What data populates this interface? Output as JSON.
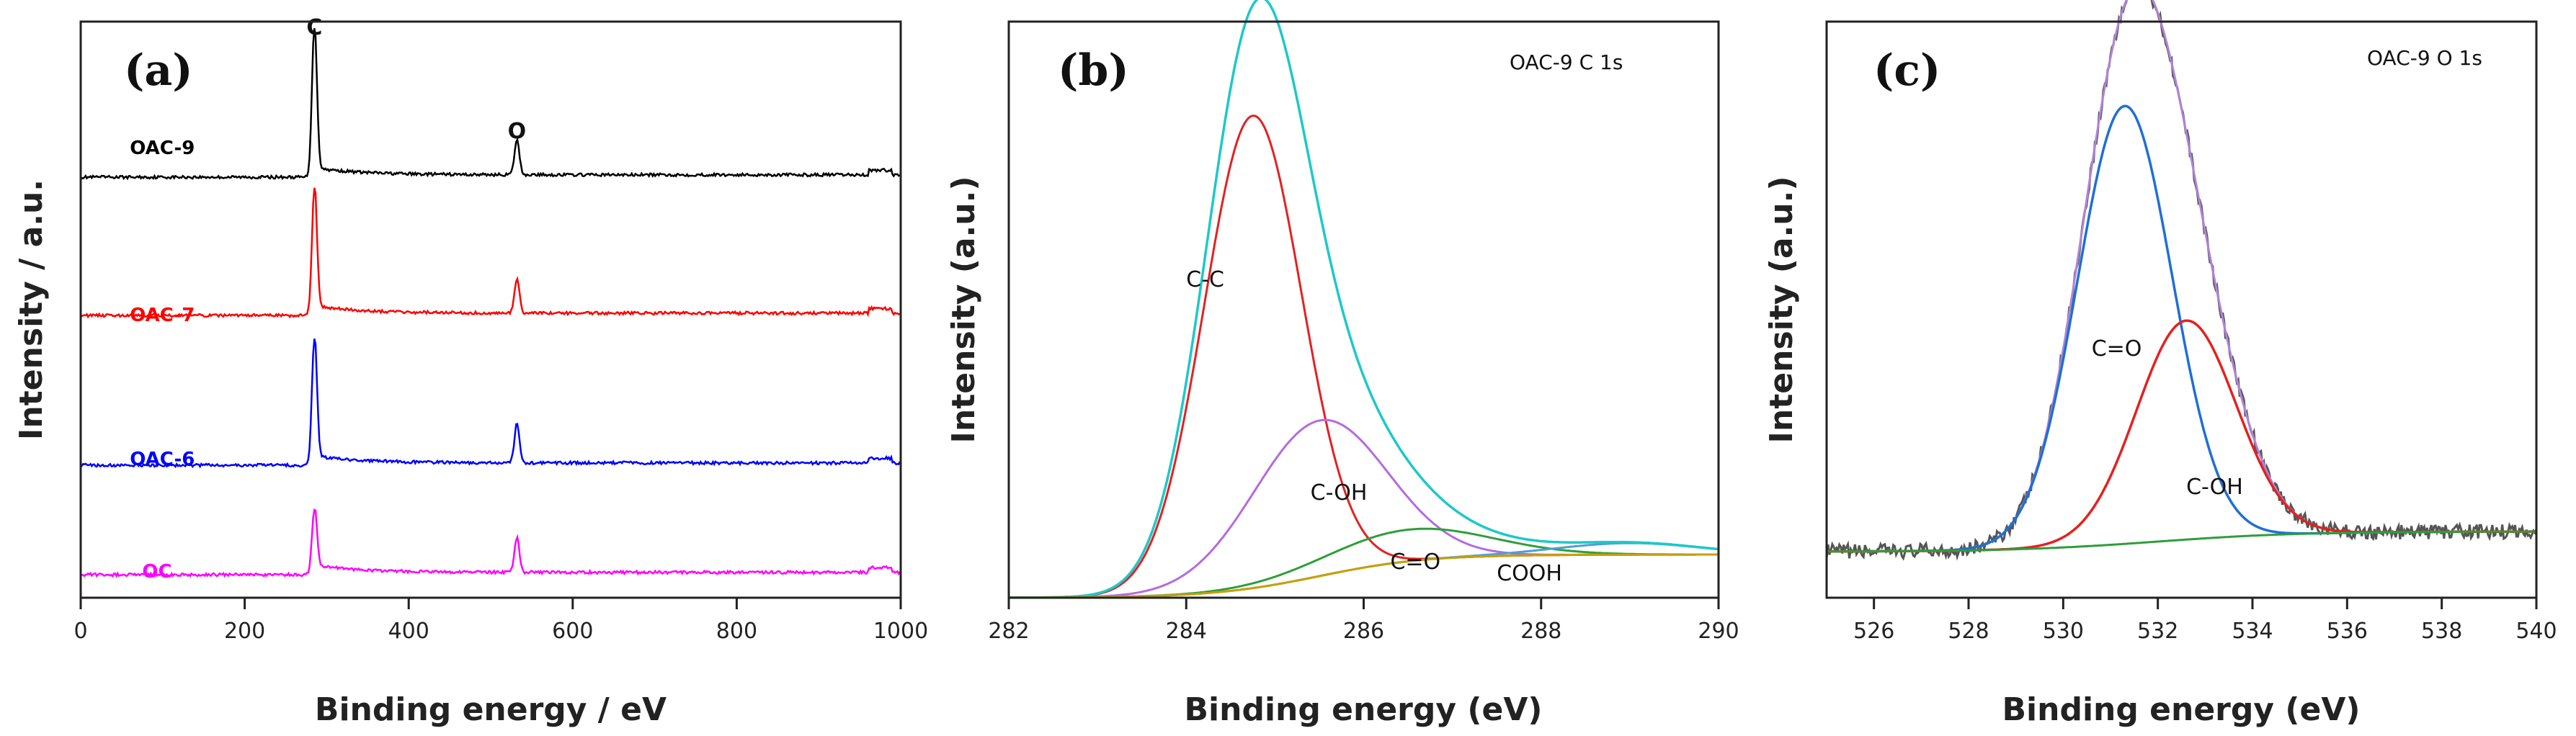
{
  "chart_data": [
    {
      "type": "line",
      "panel_label": "(a)",
      "title": "",
      "xlabel": "Binding energy / eV",
      "ylabel": "Intensity / a.u.",
      "xlim": [
        0,
        1000
      ],
      "ylim": [
        0,
        10
      ],
      "xticks": [
        "0",
        "200",
        "400",
        "600",
        "800",
        "1000"
      ],
      "yticks": [],
      "peak_labels": [
        {
          "text": "C",
          "x": 285,
          "y": 10.0
        },
        {
          "text": "O",
          "x": 532,
          "y": 8.2
        }
      ],
      "series": [
        {
          "name": "OAC-9",
          "color": "#000000",
          "baseline": 7.3,
          "peaks": [
            [
              285,
              2.6,
              3
            ],
            [
              532,
              0.6,
              3
            ]
          ],
          "label_x": 60,
          "label_y": 7.7
        },
        {
          "name": "OAC-7",
          "color": "#ff0000",
          "baseline": 4.9,
          "peaks": [
            [
              285,
              2.2,
              3
            ],
            [
              532,
              0.6,
              3
            ]
          ],
          "label_x": 60,
          "label_y": 4.8
        },
        {
          "name": "OAC-6",
          "color": "#0000ff",
          "baseline": 2.3,
          "peaks": [
            [
              285,
              2.2,
              3
            ],
            [
              532,
              0.7,
              3
            ]
          ],
          "label_x": 60,
          "label_y": 2.3
        },
        {
          "name": "OC",
          "color": "#ff00ff",
          "baseline": 0.4,
          "peaks": [
            [
              285,
              1.1,
              3
            ],
            [
              532,
              0.6,
              3
            ]
          ],
          "label_x": 75,
          "label_y": 0.35
        }
      ]
    },
    {
      "type": "line",
      "panel_label": "(b)",
      "title": "OAC-9 C 1s",
      "xlabel": "Binding energy (eV)",
      "ylabel": "Intensity (a.u.)",
      "xlim": [
        282,
        290
      ],
      "ylim": [
        0,
        1.0
      ],
      "xticks": [
        "282",
        "284",
        "286",
        "288",
        "290"
      ],
      "yticks": [],
      "background": {
        "start": 0.0,
        "end": 0.075,
        "center": 285.5,
        "width": 0.6
      },
      "series": [
        {
          "name": "C-C",
          "color": "#e52020",
          "center": 284.75,
          "height": 0.82,
          "sigma": 0.55,
          "label_x": 284.0,
          "label_y": 0.54
        },
        {
          "name": "C-OH",
          "color": "#b36be0",
          "center": 285.5,
          "height": 0.27,
          "sigma": 0.75,
          "label_x": 285.4,
          "label_y": 0.17
        },
        {
          "name": "C=O",
          "color": "#2e9e3a",
          "center": 286.5,
          "height": 0.055,
          "sigma": 0.9,
          "label_x": 286.3,
          "label_y": 0.05
        },
        {
          "name": "COOH",
          "color": "#ffffff",
          "center": 289.0,
          "height": 0.02,
          "sigma": 0.8,
          "label_x": 287.5,
          "label_y": 0.03
        },
        {
          "name": "Envelope",
          "color": "#1ec8c8"
        },
        {
          "name": "Background",
          "color": "#c8a000"
        }
      ]
    },
    {
      "type": "line",
      "panel_label": "(c)",
      "title": "OAC-9 O 1s",
      "xlabel": "Binding energy (eV)",
      "ylabel": "Intensity (a.u.)",
      "xlim": [
        525,
        540
      ],
      "ylim": [
        0,
        1.0
      ],
      "xticks": [
        "526",
        "528",
        "530",
        "532",
        "534",
        "536",
        "538",
        "540"
      ],
      "yticks": [],
      "background": {
        "start": 0.08,
        "end": 0.115,
        "center": 532,
        "width": 1.5
      },
      "series": [
        {
          "name": "C=O",
          "color": "#1f6fd6",
          "center": 531.3,
          "height": 0.76,
          "sigma": 1.0,
          "label_x": 530.6,
          "label_y": 0.42
        },
        {
          "name": "C-OH",
          "color": "#e52020",
          "center": 532.6,
          "height": 0.38,
          "sigma": 1.05,
          "label_x": 532.6,
          "label_y": 0.18
        },
        {
          "name": "Envelope",
          "color": "#b084d8"
        },
        {
          "name": "Raw",
          "color": "#555555"
        },
        {
          "name": "Background",
          "color": "#2e9e3a"
        }
      ]
    }
  ]
}
